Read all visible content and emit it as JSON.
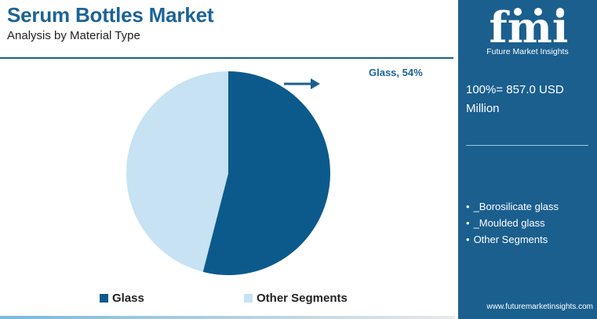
{
  "header": {
    "title": "Serum Bottles Market",
    "subtitle": "Analysis by Material Type"
  },
  "colors": {
    "glass": "#0c5a8c",
    "other": "#c6e2f3",
    "accent": "#1b5f8f"
  },
  "chart_data": {
    "type": "pie",
    "title": "Serum Bottles Market",
    "subtitle": "Analysis by Material Type",
    "slices": [
      {
        "name": "Glass",
        "value": 54
      },
      {
        "name": "Other Segments",
        "value": 46
      }
    ],
    "callout_label": "Glass, 54%",
    "legend": [
      "Glass",
      "Other Segments"
    ],
    "legend_position": "bottom"
  },
  "sidebar": {
    "logo_text": "fmi",
    "logo_subtitle": "Future Market Insights",
    "total_label": "100%= 857.0 USD Million",
    "segments": [
      "_Borosilicate glass",
      "_Moulded glass",
      "Other Segments"
    ],
    "website": "www.futuremarketinsights.com"
  }
}
